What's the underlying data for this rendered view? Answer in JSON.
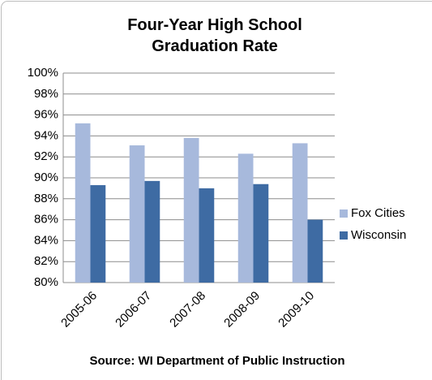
{
  "chart_data": {
    "type": "bar",
    "title": "Four-Year High School Graduation Rate",
    "source": "Source:  WI Department of Public Instruction",
    "categories": [
      "2005-06",
      "2006-07",
      "2007-08",
      "2008-09",
      "2009-10"
    ],
    "series": [
      {
        "name": "Fox Cities",
        "color": "#a7b9dc",
        "values": [
          95.2,
          93.1,
          93.8,
          92.3,
          93.3
        ]
      },
      {
        "name": "Wisconsin",
        "color": "#3e6ba3",
        "values": [
          89.3,
          89.7,
          89.0,
          89.4,
          86.0
        ]
      }
    ],
    "ylim": [
      80,
      100
    ],
    "yticks": [
      {
        "value": 80,
        "label": "80%"
      },
      {
        "value": 82,
        "label": "82%"
      },
      {
        "value": 84,
        "label": "84%"
      },
      {
        "value": 86,
        "label": "86%"
      },
      {
        "value": 88,
        "label": "88%"
      },
      {
        "value": 90,
        "label": "90%"
      },
      {
        "value": 92,
        "label": "92%"
      },
      {
        "value": 94,
        "label": "94%"
      },
      {
        "value": 96,
        "label": "96%"
      },
      {
        "value": 98,
        "label": "98%"
      },
      {
        "value": 100,
        "label": "100%"
      }
    ],
    "grid": true,
    "legend": "right"
  }
}
